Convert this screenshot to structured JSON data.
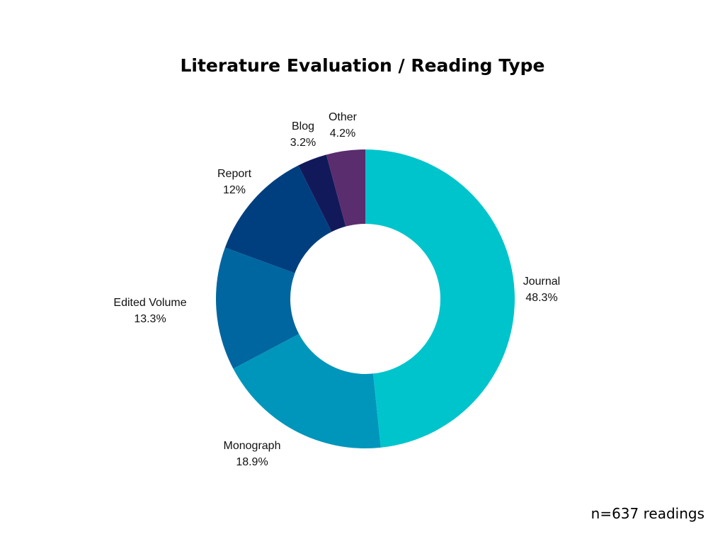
{
  "chart_data": {
    "type": "donut",
    "title": "Literature Evaluation / Reading Type",
    "categories": [
      "Journal",
      "Monograph",
      "Edited Volume",
      "Report",
      "Blog",
      "Other"
    ],
    "values": [
      48.3,
      18.9,
      13.3,
      12,
      3.2,
      4.2
    ],
    "value_labels": [
      "48.3%",
      "18.9%",
      "13.3%",
      "12%",
      "3.2%",
      "4.2%"
    ],
    "colors": [
      "#00c4cc",
      "#0096bb",
      "#0066a0",
      "#003f7f",
      "#12195a",
      "#5a2d6e"
    ],
    "note": "n=637 readings"
  }
}
